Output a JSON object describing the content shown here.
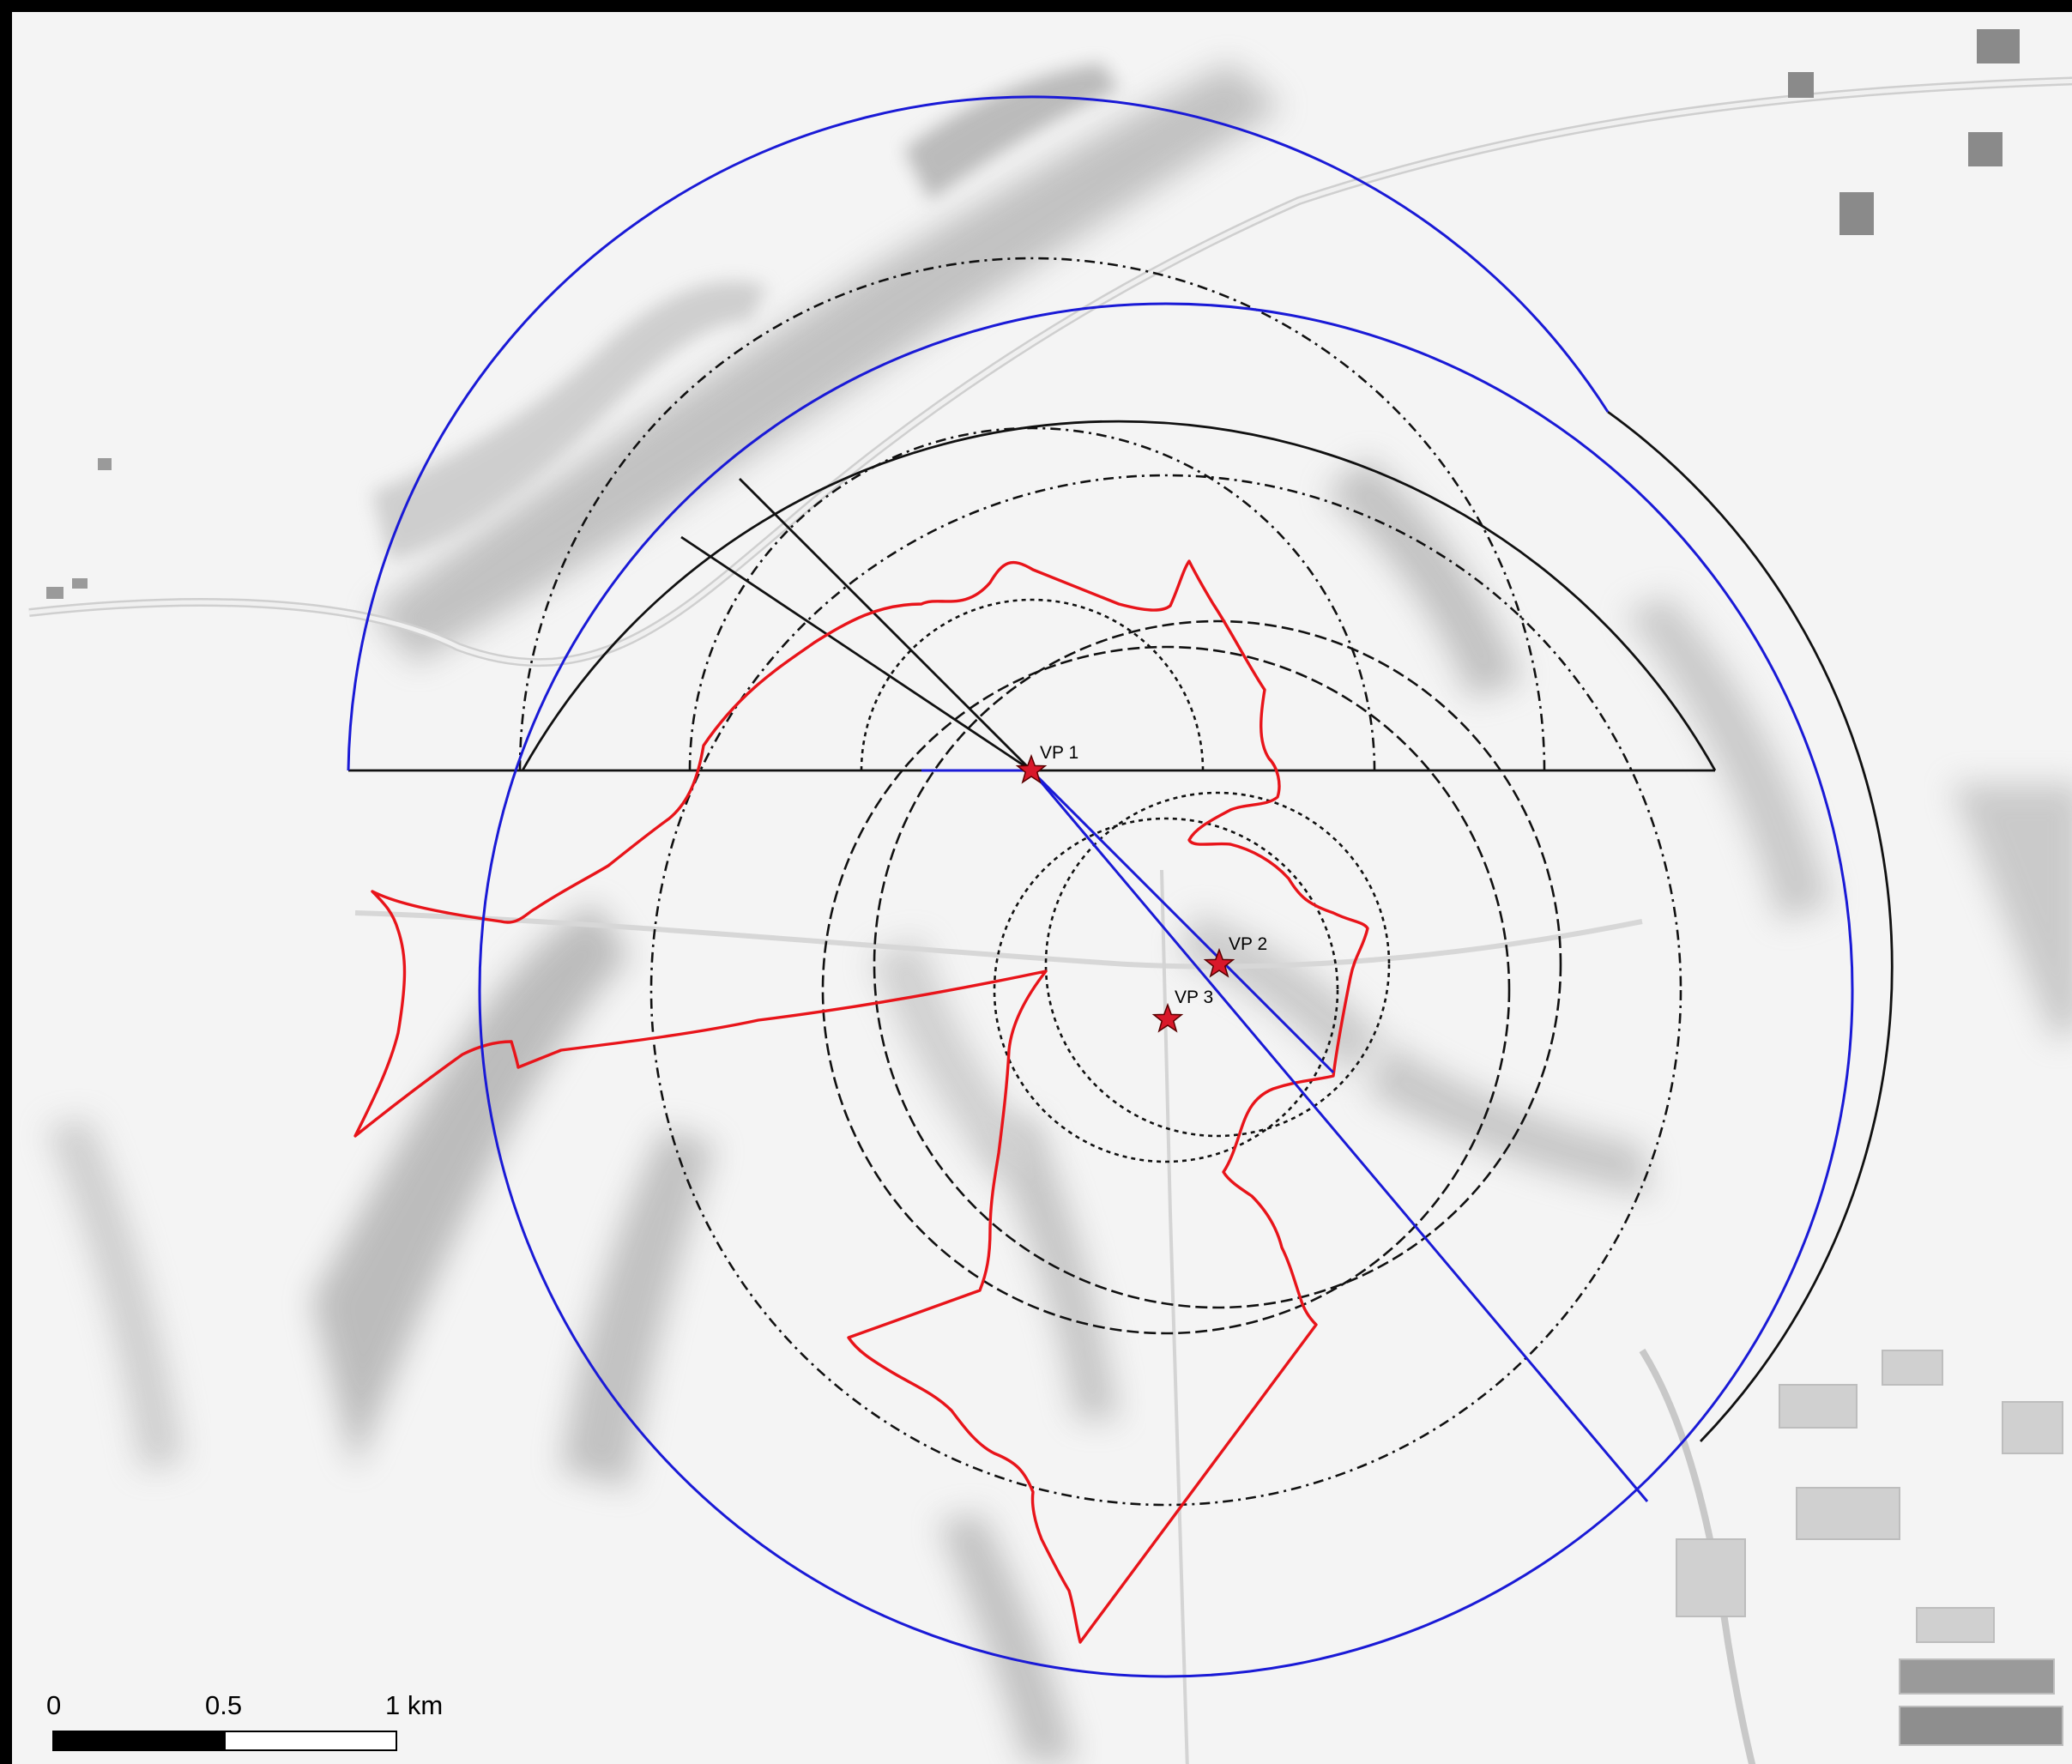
{
  "viewpoints": [
    {
      "id": "vp1",
      "label": "VP 1"
    },
    {
      "id": "vp2",
      "label": "VP 2"
    },
    {
      "id": "vp3",
      "label": "VP 3"
    }
  ],
  "scale_bar": {
    "labels": [
      "0",
      "0.5",
      "1 km"
    ],
    "fill_colors": [
      "#000000",
      "#ffffff"
    ]
  },
  "colors": {
    "boundary": "#e8141a",
    "buffer_circle": "#1a1ad6",
    "sector_outline": "#111111",
    "distance_rings": "#111111",
    "viewpoint_marker": "#d9182a",
    "terrain_shade": "#8a8a8a",
    "background": "#f4f4f4"
  },
  "legend_items": {
    "boundary_line": "red-boundary",
    "buffer_line": "blue-buffer",
    "ring_lines": "dashed-distance-rings"
  }
}
